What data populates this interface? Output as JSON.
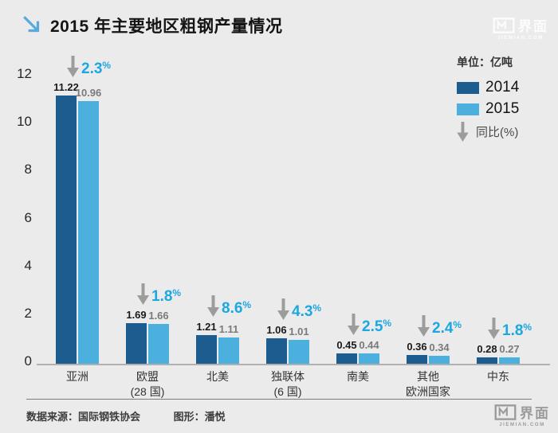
{
  "header": {
    "title": "2015 年主要地区粗钢产量情况"
  },
  "brand": {
    "name": "界面",
    "domain": "JIEMIAN.COM"
  },
  "legend": {
    "unit_label": "单位：亿吨",
    "series": [
      {
        "label": "2014",
        "color": "#1d5c8e"
      },
      {
        "label": "2015",
        "color": "#4bb0de"
      }
    ],
    "yoy_label": "同比(%)"
  },
  "chart_data": {
    "type": "bar",
    "title": "2015 年主要地区粗钢产量情况",
    "unit": "亿吨",
    "categories": [
      "亚洲",
      "欧盟\n(28 国)",
      "北美",
      "独联体\n(6 国)",
      "南美",
      "其他\n欧洲国家",
      "中东"
    ],
    "series": [
      {
        "name": "2014",
        "values": [
          11.22,
          1.69,
          1.21,
          1.06,
          0.45,
          0.36,
          0.28
        ]
      },
      {
        "name": "2015",
        "values": [
          10.96,
          1.66,
          1.11,
          1.01,
          0.44,
          0.34,
          0.27
        ]
      }
    ],
    "yoy_decline_pct": [
      "2.3",
      "1.8",
      "8.6",
      "4.3",
      "2.5",
      "2.4",
      "1.8"
    ],
    "ylim": [
      0,
      12
    ],
    "yticks": [
      0,
      2,
      4,
      6,
      8,
      10,
      12
    ],
    "grid": false,
    "legend_position": "top-right"
  },
  "footer": {
    "source": "数据来源：国际钢铁协会",
    "credit": "图形：潘悦"
  },
  "colors": {
    "background": "#ebebeb",
    "bar_2014": "#1d5c8e",
    "bar_2015": "#4bb0de",
    "pct_blue": "#1ba7e1",
    "arrow_gray": "#9c9c9c",
    "title_arrow_blue": "#56abdc",
    "baseline_gray": "#b1b1b1",
    "value_label_2014": "#1a1a1a",
    "value_label_2015": "#7a7a7a"
  }
}
